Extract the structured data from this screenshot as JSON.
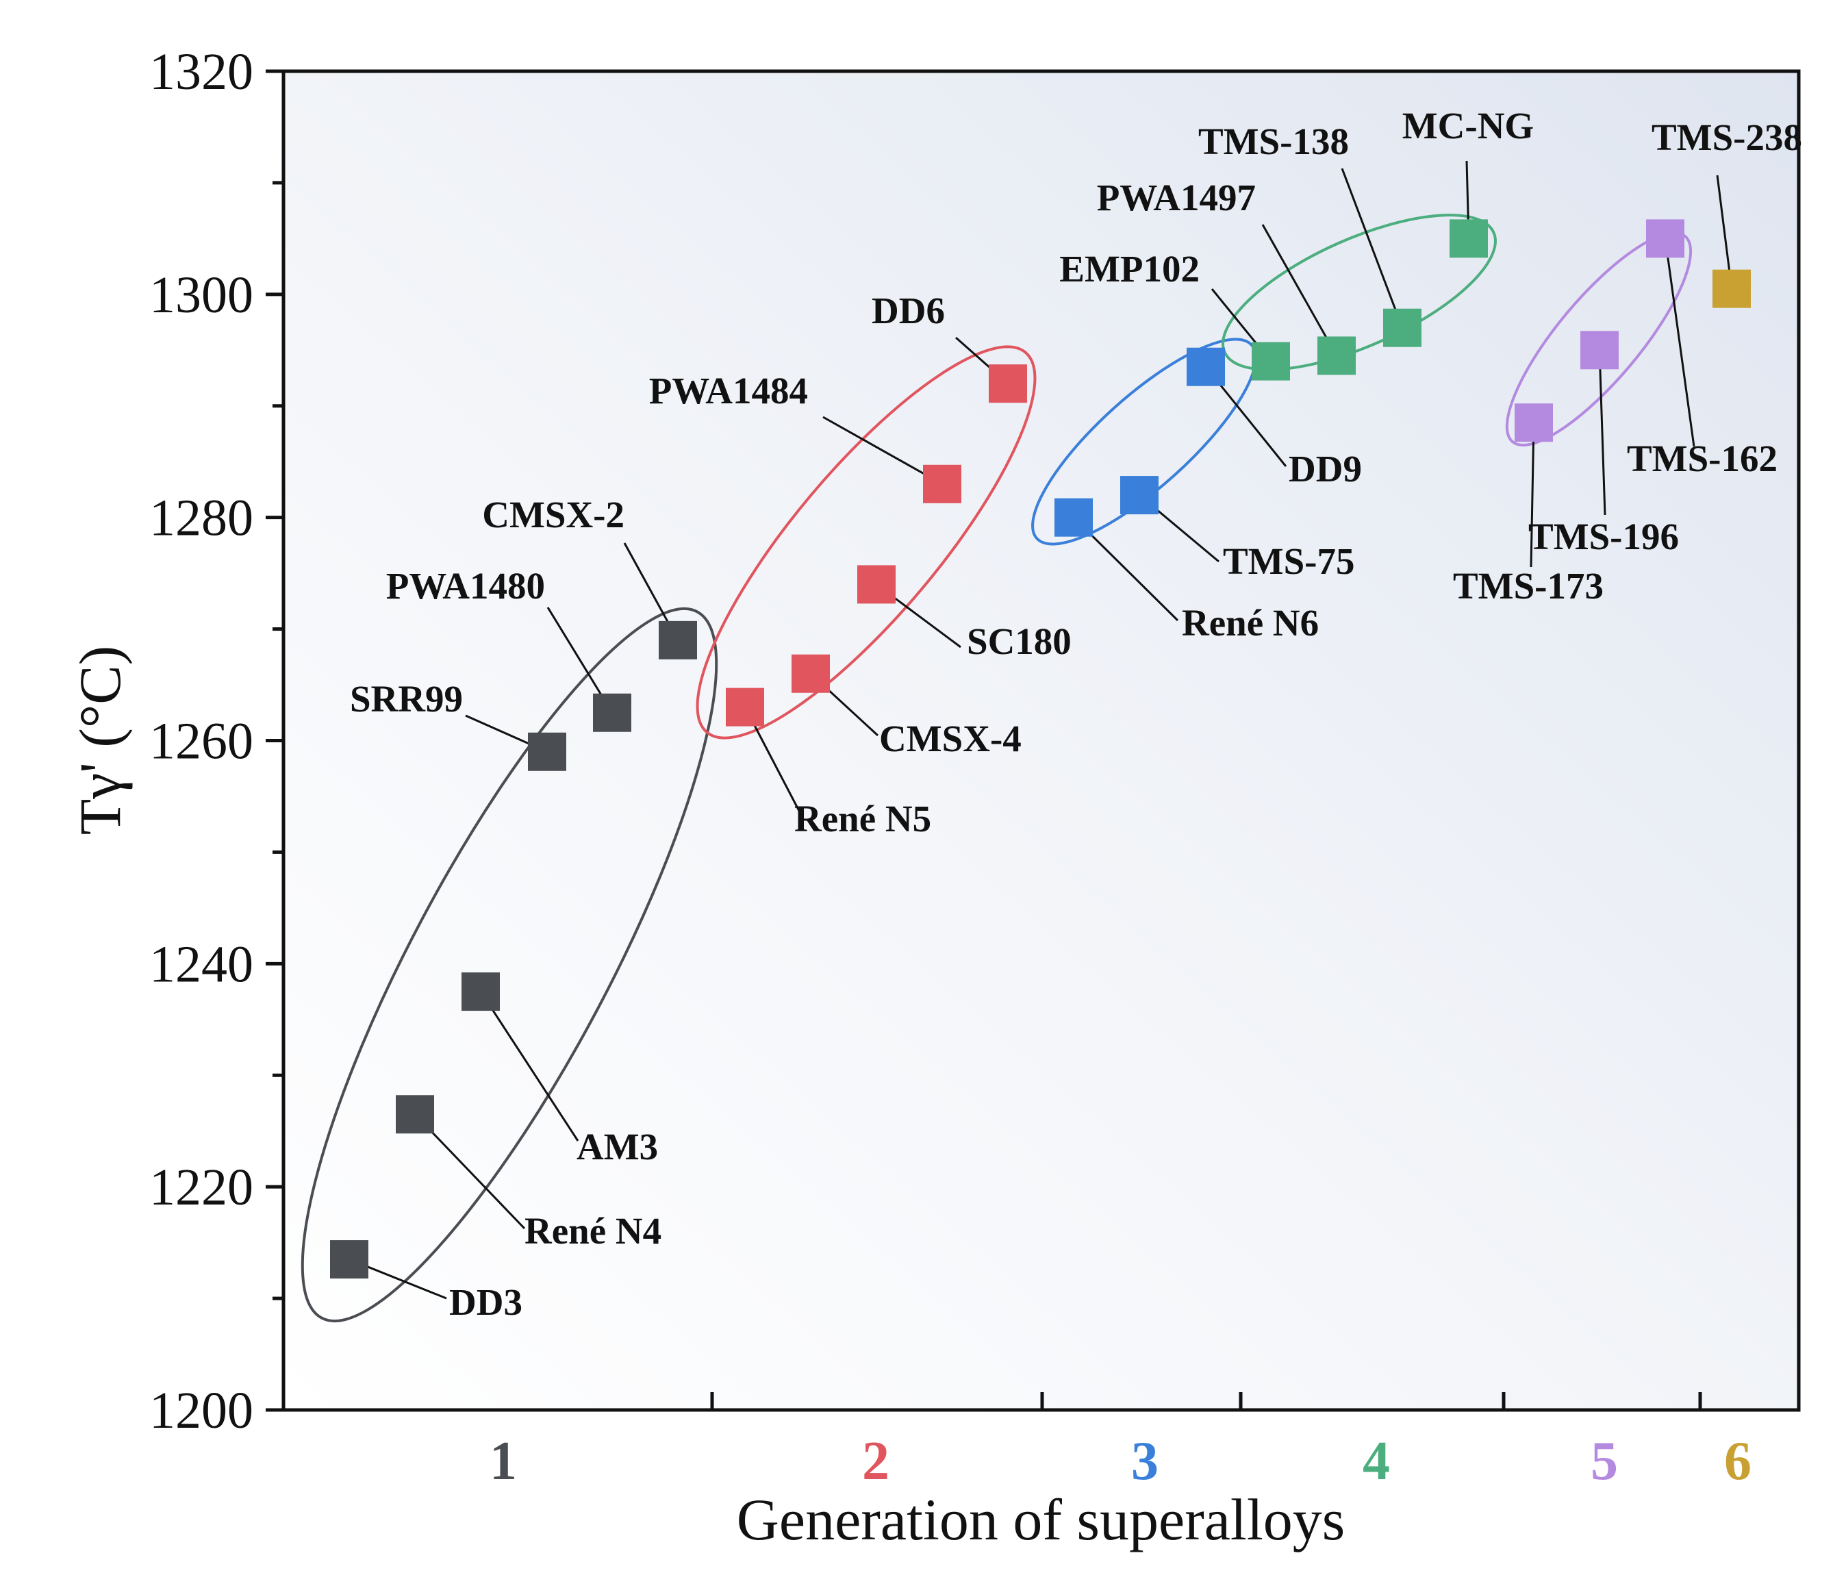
{
  "chart_data": {
    "type": "scatter",
    "xlabel": "Generation of superalloys",
    "ylabel": "Tγ' (°C)",
    "ylim": [
      1200,
      1320
    ],
    "yticks": [
      1200,
      1220,
      1240,
      1260,
      1280,
      1300,
      1320
    ],
    "legend": "none",
    "grid": false,
    "colors": {
      "1": "#4a4d52",
      "2": "#e0555e",
      "3": "#3a7fd9",
      "4": "#4cae7e",
      "5": "#b48ae0",
      "6": "#c9a132"
    },
    "generations": [
      {
        "label": "1",
        "range": [
          0.5,
          1.5
        ]
      },
      {
        "label": "2",
        "range": [
          1.5,
          2.5
        ]
      },
      {
        "label": "3",
        "range": [
          2.5,
          3.5
        ]
      },
      {
        "label": "4",
        "range": [
          3.5,
          4.5
        ]
      },
      {
        "label": "5",
        "range": [
          4.5,
          5.5
        ]
      },
      {
        "label": "6",
        "range": [
          5.5,
          6.5
        ]
      }
    ],
    "series": [
      {
        "generation": "1",
        "points": [
          {
            "name": "DD3",
            "x": 1,
            "y": 1213.5
          },
          {
            "name": "René N4",
            "x": 2,
            "y": 1226.5
          },
          {
            "name": "AM3",
            "x": 3,
            "y": 1237.5
          },
          {
            "name": "SRR99",
            "x": 4,
            "y": 1259
          },
          {
            "name": "PWA1480",
            "x": 5,
            "y": 1262.5
          },
          {
            "name": "CMSX-2",
            "x": 6,
            "y": 1269
          }
        ]
      },
      {
        "generation": "2",
        "points": [
          {
            "name": "René N5",
            "x": 7,
            "y": 1263
          },
          {
            "name": "CMSX-4",
            "x": 8,
            "y": 1266
          },
          {
            "name": "SC180",
            "x": 9,
            "y": 1274
          },
          {
            "name": "PWA1484",
            "x": 10,
            "y": 1283
          },
          {
            "name": "DD6",
            "x": 11,
            "y": 1292
          }
        ]
      },
      {
        "generation": "3",
        "points": [
          {
            "name": "René N6",
            "x": 12,
            "y": 1280
          },
          {
            "name": "TMS-75",
            "x": 13,
            "y": 1282
          },
          {
            "name": "DD9",
            "x": 14,
            "y": 1293.5
          }
        ]
      },
      {
        "generation": "4",
        "points": [
          {
            "name": "EMP102",
            "x": 15,
            "y": 1294
          },
          {
            "name": "PWA1497",
            "x": 16,
            "y": 1294.5
          },
          {
            "name": "TMS-138",
            "x": 17,
            "y": 1297
          },
          {
            "name": "MC-NG",
            "x": 18,
            "y": 1305
          }
        ]
      },
      {
        "generation": "5",
        "points": [
          {
            "name": "TMS-173",
            "x": 19,
            "y": 1288.5
          },
          {
            "name": "TMS-196",
            "x": 20,
            "y": 1295
          },
          {
            "name": "TMS-162",
            "x": 21,
            "y": 1305
          }
        ]
      },
      {
        "generation": "6",
        "points": [
          {
            "name": "TMS-238",
            "x": 22,
            "y": 1300.5
          }
        ]
      }
    ]
  }
}
